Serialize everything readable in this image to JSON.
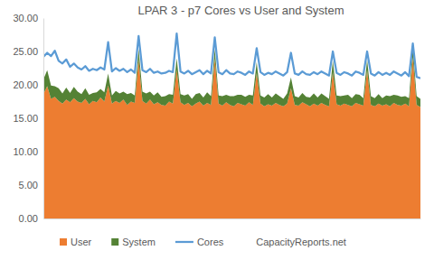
{
  "chart_data": {
    "type": "area",
    "title": "LPAR 3 - p7 Cores vs User and System",
    "stacked": true,
    "grid": false,
    "legend": "bottom",
    "tick_labels": "y",
    "annotations": [
      "CapacityReports.net"
    ],
    "ylim": [
      0,
      30
    ],
    "yticks": [
      {
        "value": 0,
        "label": "0.00"
      },
      {
        "value": 5,
        "label": "5.00"
      },
      {
        "value": 10,
        "label": "10.00"
      },
      {
        "value": 15,
        "label": "15.00"
      },
      {
        "value": 20,
        "label": "20.00"
      },
      {
        "value": 25,
        "label": "25.00"
      },
      {
        "value": 30,
        "label": "30.00"
      }
    ],
    "categories": [
      null,
      null,
      null,
      null,
      null,
      null,
      null,
      null,
      null,
      null,
      null,
      null,
      null,
      null,
      null,
      null,
      null,
      null,
      null,
      null,
      null,
      null,
      null,
      null,
      null,
      null,
      null,
      null,
      null,
      null,
      null,
      null,
      null,
      null,
      null,
      null,
      null,
      null,
      null,
      null,
      null,
      null,
      null,
      null,
      null,
      null,
      null,
      null,
      null,
      null,
      null,
      null,
      null,
      null,
      null,
      null,
      null,
      null,
      null,
      null,
      null,
      null,
      null,
      null,
      null,
      null,
      null,
      null,
      null,
      null,
      null,
      null,
      null,
      null,
      null,
      null,
      null,
      null,
      null,
      null,
      null,
      null,
      null,
      null,
      null,
      null,
      null,
      null,
      null,
      null,
      null,
      null,
      null,
      null,
      null,
      null,
      null,
      null,
      null,
      null
    ],
    "series": [
      {
        "name": "User",
        "type": "area",
        "color": "#ED7D31",
        "values": [
          18.6,
          19.8,
          17.9,
          18.2,
          17.6,
          17.2,
          17.8,
          17.4,
          18.0,
          17.5,
          17.3,
          17.9,
          17.1,
          17.6,
          17.4,
          18.1,
          17.5,
          19.9,
          17.2,
          17.6,
          17.3,
          17.8,
          17.0,
          17.5,
          17.3,
          23.8,
          17.6,
          17.2,
          17.8,
          17.1,
          17.4,
          17.0,
          16.9,
          17.5,
          17.2,
          22.3,
          17.4,
          17.0,
          17.3,
          16.8,
          17.2,
          17.5,
          16.9,
          17.3,
          17.0,
          23.9,
          17.2,
          16.9,
          17.4,
          17.0,
          16.8,
          17.3,
          17.1,
          16.9,
          17.4,
          17.0,
          21.8,
          17.2,
          16.8,
          17.1,
          16.9,
          17.3,
          17.0,
          16.8,
          17.2,
          19.5,
          17.0,
          16.9,
          17.4,
          17.1,
          16.8,
          17.2,
          16.9,
          17.3,
          17.0,
          16.8,
          21.9,
          17.1,
          16.9,
          17.2,
          17.0,
          16.8,
          17.3,
          17.1,
          16.9,
          22.2,
          17.0,
          16.8,
          17.2,
          16.9,
          17.1,
          16.8,
          17.3,
          17.0,
          16.9,
          17.2,
          16.8,
          24.1,
          17.0,
          16.7
        ]
      },
      {
        "name": "System",
        "type": "area",
        "color": "#548235",
        "values": [
          2.2,
          2.4,
          2.0,
          1.6,
          1.9,
          1.5,
          1.8,
          1.4,
          1.7,
          1.5,
          1.3,
          1.6,
          1.4,
          1.2,
          1.5,
          1.3,
          1.4,
          1.8,
          1.2,
          1.5,
          1.4,
          1.2,
          1.6,
          1.3,
          1.1,
          1.6,
          1.4,
          1.5,
          1.2,
          1.3,
          1.5,
          1.2,
          1.4,
          1.1,
          1.3,
          1.7,
          1.2,
          1.4,
          1.3,
          1.1,
          1.4,
          1.3,
          1.2,
          1.6,
          1.3,
          1.5,
          1.2,
          1.4,
          1.1,
          1.3,
          1.5,
          1.2,
          1.4,
          1.3,
          1.1,
          1.4,
          1.6,
          1.2,
          1.3,
          1.5,
          1.2,
          1.4,
          1.3,
          1.1,
          1.5,
          1.6,
          1.3,
          1.2,
          1.4,
          1.1,
          1.3,
          1.5,
          1.2,
          1.4,
          1.3,
          1.1,
          1.7,
          1.3,
          1.4,
          1.2,
          1.5,
          1.2,
          1.3,
          1.4,
          1.1,
          1.6,
          1.3,
          1.2,
          1.4,
          1.1,
          1.3,
          1.5,
          1.2,
          1.4,
          1.3,
          1.1,
          1.2,
          1.5,
          1.3,
          1.2
        ]
      },
      {
        "name": "Cores",
        "type": "line",
        "color": "#5B9BD5",
        "values": [
          24.2,
          24.8,
          24.3,
          25.1,
          23.6,
          23.2,
          23.8,
          22.7,
          23.2,
          22.6,
          22.3,
          22.8,
          22.1,
          22.4,
          22.2,
          22.6,
          22.3,
          26.4,
          22.0,
          22.5,
          22.1,
          22.4,
          21.9,
          22.3,
          21.8,
          27.3,
          22.2,
          21.9,
          22.4,
          21.8,
          22.0,
          21.7,
          21.8,
          22.1,
          21.9,
          27.7,
          22.0,
          21.7,
          22.1,
          21.6,
          21.9,
          22.2,
          21.6,
          22.1,
          21.7,
          27.1,
          21.9,
          21.6,
          22.2,
          21.7,
          21.6,
          22.0,
          21.8,
          21.5,
          22.0,
          21.7,
          25.5,
          21.9,
          21.5,
          21.8,
          21.6,
          22.0,
          21.7,
          21.4,
          21.9,
          24.8,
          21.7,
          21.5,
          22.0,
          21.6,
          21.5,
          21.9,
          21.6,
          22.0,
          21.7,
          21.4,
          25.0,
          21.8,
          21.5,
          21.9,
          21.7,
          21.4,
          22.0,
          21.8,
          21.5,
          25.0,
          21.7,
          21.4,
          21.9,
          21.5,
          21.8,
          21.5,
          22.0,
          21.7,
          21.4,
          21.9,
          21.3,
          26.2,
          21.2,
          21.0
        ]
      }
    ]
  }
}
